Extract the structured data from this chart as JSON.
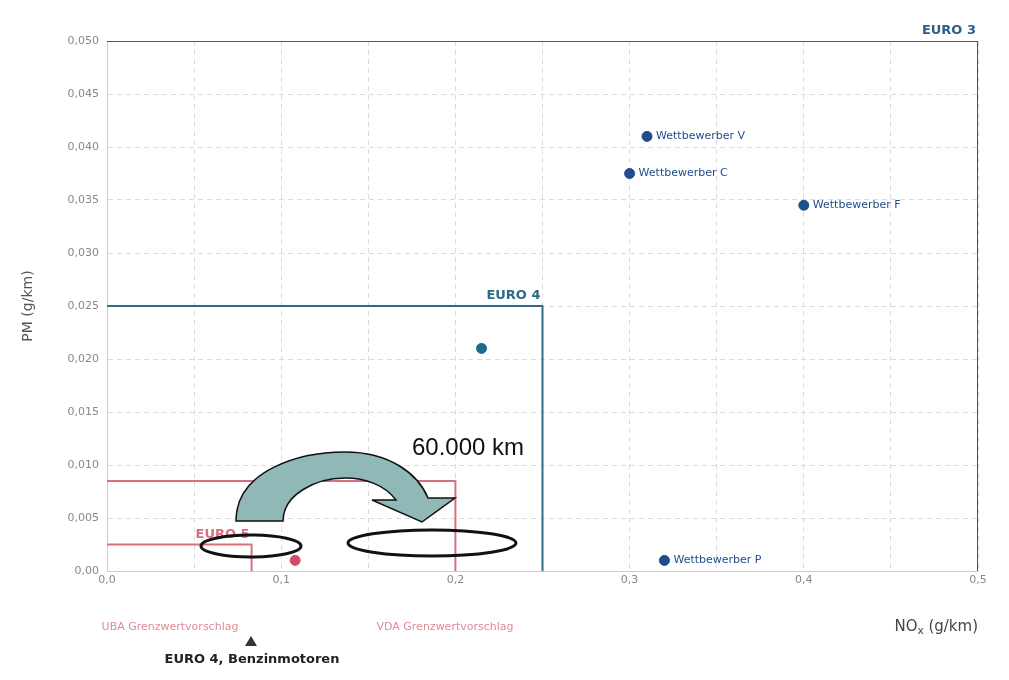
{
  "chart_data": {
    "type": "scatter",
    "xlabel": "NO$_{x}$ (g/km)",
    "ylabel": "PM (g/km)",
    "xlim": [
      0,
      0.5
    ],
    "ylim": [
      0,
      0.05
    ],
    "xticks": [
      {
        "value": 0,
        "label": "0,0"
      },
      {
        "value": 0.05,
        "label": null
      },
      {
        "value": 0.1,
        "label": "0,1"
      },
      {
        "value": 0.15,
        "label": null
      },
      {
        "value": 0.2,
        "label": "0,2"
      },
      {
        "value": 0.25,
        "label": null
      },
      {
        "value": 0.3,
        "label": "0,3"
      },
      {
        "value": 0.35,
        "label": null
      },
      {
        "value": 0.4,
        "label": "0,4"
      },
      {
        "value": 0.45,
        "label": null
      },
      {
        "value": 0.5,
        "label": "0,5"
      }
    ],
    "yticks": [
      {
        "value": 0,
        "label": "0,00"
      },
      {
        "value": 0.005,
        "label": "0,005"
      },
      {
        "value": 0.01,
        "label": "0,010"
      },
      {
        "value": 0.015,
        "label": "0,015"
      },
      {
        "value": 0.02,
        "label": "0,020"
      },
      {
        "value": 0.025,
        "label": "0,025"
      },
      {
        "value": 0.03,
        "label": "0,030"
      },
      {
        "value": 0.035,
        "label": "0,035"
      },
      {
        "value": 0.04,
        "label": "0,040"
      },
      {
        "value": 0.045,
        "label": "0,045"
      },
      {
        "value": 0.05,
        "label": "0,050"
      }
    ],
    "grid": true,
    "legend": false,
    "series": [
      {
        "name": "EURO 3",
        "type": "line",
        "marker": "none",
        "color": "#2e5f8a",
        "x": [
          0,
          0.5,
          0.5
        ],
        "values": [
          0.05,
          0.05,
          0
        ]
      },
      {
        "name": "EURO 4",
        "type": "line",
        "marker": "none",
        "color": "#2e6a8a",
        "x": [
          0,
          0.25,
          0.25
        ],
        "values": [
          0.025,
          0.025,
          0
        ]
      },
      {
        "name": "EURO 5",
        "type": "line",
        "marker": "none",
        "color": "#d87080",
        "x": [
          0,
          0.083,
          0.083
        ],
        "values": [
          0.0025,
          0.0025,
          0
        ]
      },
      {
        "type": "line",
        "marker": "none",
        "color": "#d87080",
        "x": [
          0,
          0.2,
          0.2
        ],
        "values": [
          0.0085,
          0.0085,
          0
        ]
      },
      {
        "name": "Wettbewerber V",
        "type": "scatter",
        "marker": "circle",
        "color": "#1f4e8c",
        "x": [
          0.31
        ],
        "values": [
          0.041
        ]
      },
      {
        "name": "Wettbewerber C",
        "type": "scatter",
        "marker": "circle",
        "color": "#1f4e8c",
        "x": [
          0.3
        ],
        "values": [
          0.0375
        ]
      },
      {
        "name": "Wettbewerber F",
        "type": "scatter",
        "marker": "circle",
        "color": "#1f4e8c",
        "x": [
          0.4
        ],
        "values": [
          0.0345
        ]
      },
      {
        "name": "Wettbewerber P",
        "type": "scatter",
        "marker": "circle",
        "color": "#1f4e8c",
        "x": [
          0.32
        ],
        "values": [
          0.001
        ]
      },
      {
        "type": "scatter",
        "marker": "circle",
        "color": "#1d6a8a",
        "x": [
          0.215
        ],
        "values": [
          0.021
        ]
      },
      {
        "type": "scatter",
        "marker": "circle",
        "color": "#d04a6a",
        "x": [
          0.108
        ],
        "values": [
          0.001
        ]
      }
    ],
    "annotations": [
      "60.000 km",
      "UBA Grenzwertvorschlag",
      "EURO 4, Benzinmotoren",
      "VDA Grenzwertvorschlag"
    ]
  }
}
